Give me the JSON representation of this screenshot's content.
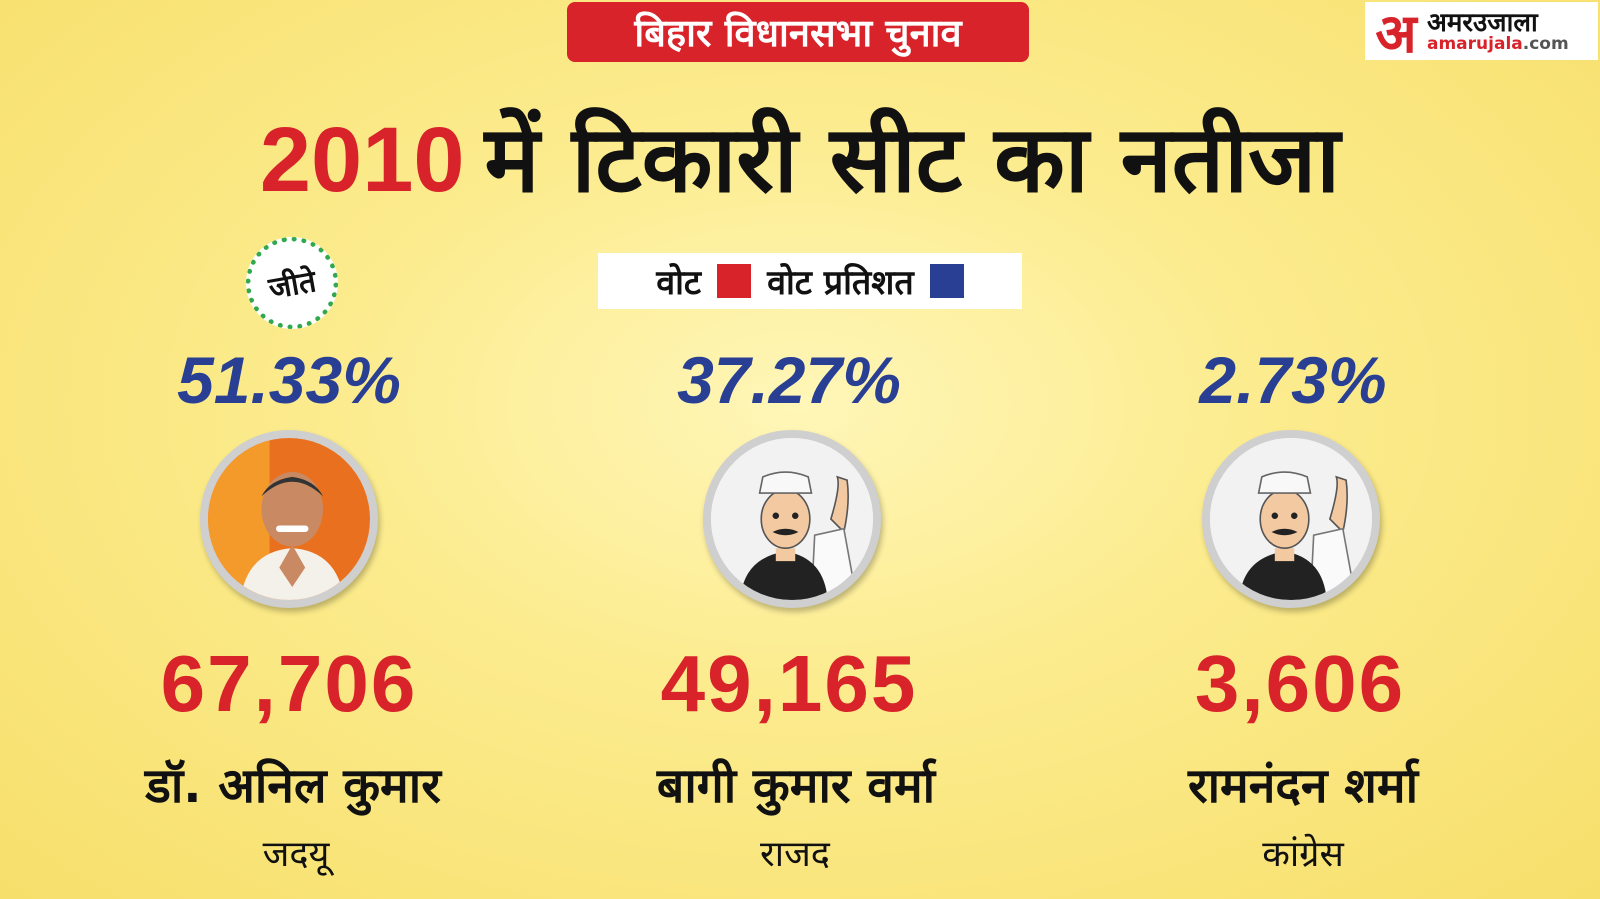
{
  "banner": "बिहार विधानसभा चुनाव",
  "logo": {
    "mark": "अ",
    "hindi": "अमरउजाला",
    "site": "amarujala",
    "tld": ".com"
  },
  "headline": {
    "year": "2010",
    "rest": "में  टिकारी सीट का नतीजा"
  },
  "legend": {
    "votes_label": "वोट",
    "votes_color": "#d8232a",
    "percent_label": "वोट प्रतिशत",
    "percent_color": "#283f94"
  },
  "winner_badge": "जीते",
  "candidates": [
    {
      "percent": "51.33%",
      "votes": "67,706",
      "name": "डॉ. अनिल कुमार",
      "party": "जदयू",
      "avatar": "photo-portrait"
    },
    {
      "percent": "37.27%",
      "votes": "49,165",
      "name": "बागी कुमार वर्मा",
      "party": "राजद",
      "avatar": "cartoon-politician-icon"
    },
    {
      "percent": "2.73%",
      "votes": "3,606",
      "name": "रामनंदन शर्मा",
      "party": "कांग्रेस",
      "avatar": "cartoon-politician-icon"
    }
  ]
}
